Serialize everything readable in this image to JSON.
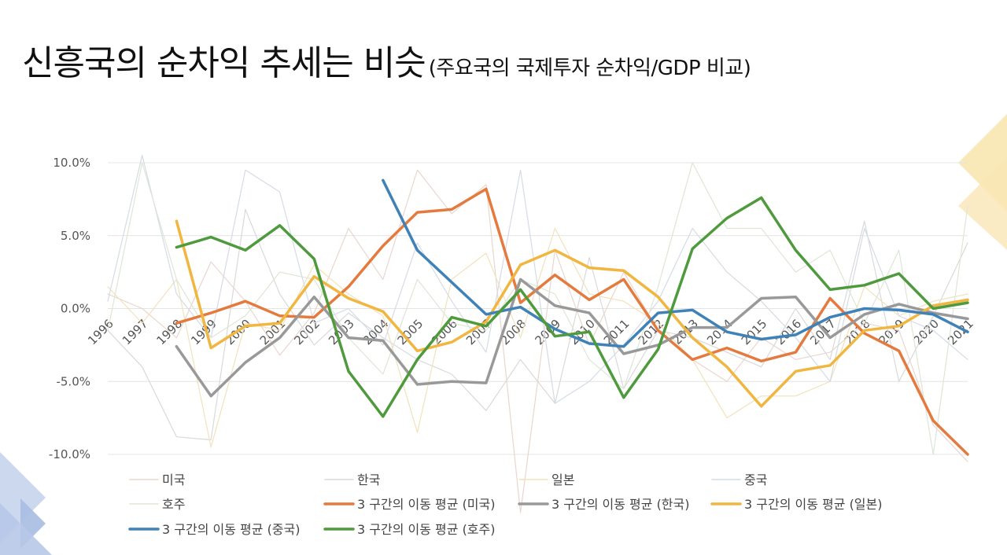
{
  "title": "신흥국의 순차익 추세는 비슷",
  "subtitle": "(주요국의 국제투자 순차익/GDP 비교)",
  "chart_data": {
    "type": "line",
    "x": [
      "1996",
      "1997",
      "1998",
      "1999",
      "2000",
      "2001",
      "2002",
      "2003",
      "2004",
      "2005",
      "2006",
      "2007",
      "2008",
      "2009",
      "2010",
      "2011",
      "2012",
      "2013",
      "2014",
      "2015",
      "2016",
      "2017",
      "2018",
      "2019",
      "2020",
      "2021"
    ],
    "ylim": [
      -10.0,
      10.0
    ],
    "yticks": [
      "10.0%",
      "5.0%",
      "0.0%",
      "-5.0%",
      "-10.0%"
    ],
    "ytick_values": [
      10,
      5,
      0,
      -5,
      -10
    ],
    "grid": true,
    "legend_position": "bottom",
    "series": [
      {
        "name": "미국",
        "kind": "raw",
        "color": "#e9d6cf",
        "values": [
          1.0,
          0.0,
          -2.0,
          3.2,
          0.5,
          -3.2,
          -0.3,
          5.5,
          2.0,
          9.5,
          6.5,
          8.5,
          -14.0,
          4.0,
          -2.5,
          2.5,
          -1.5,
          -3.5,
          -5.0,
          -2.0,
          -3.5,
          -3.0,
          -1.0,
          -1.5,
          -8.0,
          -10.5
        ]
      },
      {
        "name": "한국",
        "kind": "raw",
        "color": "#d9d9d9",
        "values": [
          -1.5,
          -4.0,
          -8.8,
          -9.0,
          6.8,
          1.0,
          -2.5,
          -0.3,
          -2.0,
          -3.5,
          -4.5,
          -7.0,
          -3.5,
          -6.5,
          3.5,
          -5.5,
          -1.5,
          -2.0,
          -3.0,
          -4.0,
          0.0,
          -3.5,
          6.0,
          -5.0,
          -0.5,
          4.5
        ]
      },
      {
        "name": "일본",
        "kind": "raw",
        "color": "#f2e2bc",
        "values": [
          1.5,
          -1.0,
          2.0,
          -9.5,
          -1.0,
          -1.5,
          3.0,
          1.0,
          -0.5,
          -8.5,
          2.0,
          3.8,
          -2.0,
          5.5,
          1.0,
          0.5,
          -1.0,
          -3.5,
          -7.5,
          -6.0,
          -6.0,
          -5.0,
          1.5,
          -0.5,
          0.5,
          1.0
        ]
      },
      {
        "name": "중국",
        "kind": "raw",
        "color": "#d4dbe6",
        "values": [
          0.5,
          10.5,
          1.0,
          -2.0,
          9.5,
          8.0,
          -1.0,
          0.0,
          -2.5,
          4.5,
          0.5,
          -3.0,
          9.5,
          -6.5,
          -5.0,
          -2.5,
          0.5,
          5.5,
          2.5,
          0.5,
          -2.0,
          -5.0,
          5.5,
          -0.5,
          -1.5,
          -3.5
        ]
      },
      {
        "name": "호주",
        "kind": "raw",
        "color": "#dde6d6",
        "values": [
          -1.5,
          10.0,
          2.0,
          -2.0,
          -0.5,
          2.5,
          2.0,
          -2.0,
          -4.5,
          2.0,
          -1.0,
          -1.5,
          2.0,
          1.0,
          -3.5,
          -5.5,
          1.5,
          10.0,
          5.5,
          5.5,
          2.5,
          4.0,
          -1.0,
          4.0,
          -10.0,
          7.0
        ]
      },
      {
        "name": "3 구간의 이동 평균 (미국)",
        "kind": "ma",
        "color": "#e47a3d",
        "values": [
          null,
          null,
          -1.0,
          -0.3,
          0.5,
          -0.5,
          -0.6,
          1.5,
          4.3,
          6.6,
          6.8,
          8.2,
          0.4,
          2.3,
          0.6,
          2.0,
          -1.5,
          -3.5,
          -2.7,
          -3.6,
          -3.0,
          0.7,
          -1.7,
          -2.9,
          -7.7,
          -10.0
        ]
      },
      {
        "name": "3 구간의 이동 평균 (한국)",
        "kind": "ma",
        "color": "#999999",
        "values": [
          null,
          null,
          -2.6,
          -6.0,
          -3.7,
          -2.0,
          0.8,
          -2.0,
          -2.2,
          -5.2,
          -5.0,
          -5.1,
          2.0,
          0.2,
          -0.3,
          -3.1,
          -2.5,
          -1.3,
          -1.3,
          0.7,
          0.8,
          -2.0,
          -0.4,
          0.3,
          -0.3,
          -0.7
        ]
      },
      {
        "name": "3 구간의 이동 평균 (일본)",
        "kind": "ma",
        "color": "#f0b640",
        "values": [
          null,
          null,
          6.0,
          -2.7,
          -1.2,
          -1.0,
          2.2,
          0.7,
          -0.2,
          -2.9,
          -2.3,
          -0.9,
          3.0,
          4.0,
          2.8,
          2.6,
          0.8,
          -2.0,
          -4.0,
          -6.7,
          -4.3,
          -3.9,
          -1.5,
          -1.2,
          0.2,
          0.6
        ]
      },
      {
        "name": "3 구간의 이동 평균 (중국)",
        "kind": "ma",
        "color": "#3f82b8",
        "values": [
          null,
          null,
          null,
          null,
          null,
          null,
          null,
          null,
          8.8,
          4.0,
          1.8,
          -0.4,
          0.1,
          -1.4,
          -2.4,
          -2.6,
          -0.3,
          -0.1,
          -1.6,
          -2.1,
          -1.8,
          -0.6,
          0.0,
          -0.1,
          -0.4,
          -1.6
        ]
      },
      {
        "name": "3 구간의 이동 평균 (호주)",
        "kind": "ma",
        "color": "#4e9a3d",
        "values": [
          null,
          null,
          4.2,
          4.9,
          4.0,
          5.7,
          3.4,
          -4.3,
          -7.4,
          -3.5,
          -0.6,
          -1.2,
          1.3,
          -1.9,
          -1.6,
          -6.1,
          -2.8,
          4.1,
          6.2,
          7.6,
          4.0,
          1.3,
          1.6,
          2.4,
          0.0,
          0.4
        ]
      }
    ]
  }
}
